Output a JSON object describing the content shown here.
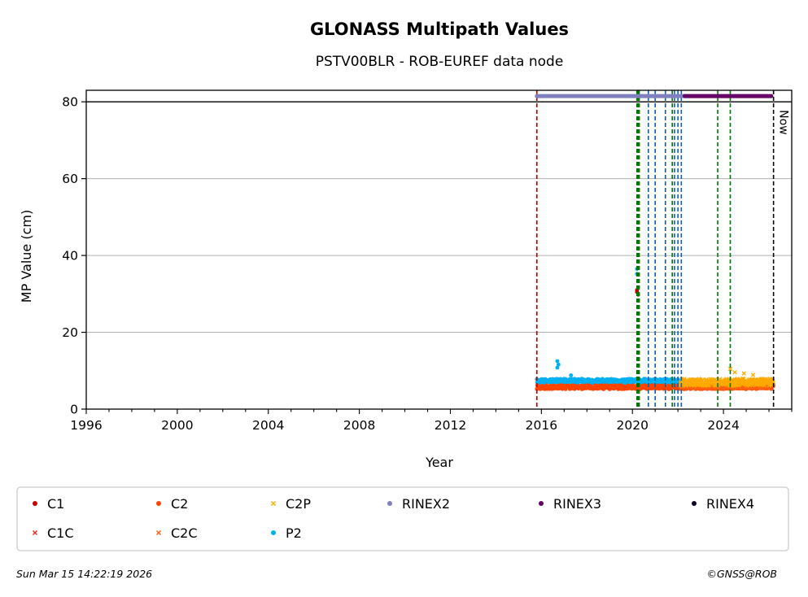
{
  "chart_data": {
    "type": "scatter",
    "title": "GLONASS Multipath Values",
    "subtitle": "PSTV00BLR - ROB-EUREF data node",
    "xlabel": "Year",
    "ylabel": "MP Value (cm)",
    "xlim": [
      1996,
      2027.0
    ],
    "ylim": [
      0,
      83
    ],
    "x_ticks": [
      1996,
      2000,
      2004,
      2008,
      2012,
      2016,
      2020,
      2024
    ],
    "y_ticks": [
      0,
      20,
      40,
      60,
      80
    ],
    "grid": "horizontal",
    "legend_position": "below",
    "reference_line_y": 80,
    "now_x": 2026.2,
    "now_label": "Now",
    "series": [
      {
        "name": "C1",
        "marker": "dot",
        "color": "#c00000",
        "x": [
          2020.2,
          2020.2,
          2020.25
        ],
        "y": [
          30.5,
          31.0,
          29.8
        ]
      },
      {
        "name": "C1C",
        "marker": "cross",
        "color": "#e03020",
        "x": [],
        "y": []
      },
      {
        "name": "C2",
        "marker": "dot",
        "color": "#ff4500",
        "range": [
          2015.8,
          2026.2
        ],
        "level": 5.7,
        "spread": 0.5
      },
      {
        "name": "C2C",
        "marker": "cross",
        "color": "#ff6010",
        "range": [
          2022.1,
          2026.2
        ],
        "level": 5.9,
        "spread": 0.5
      },
      {
        "name": "C2P",
        "marker": "cross",
        "color": "#ffaa00",
        "range": [
          2022.1,
          2026.2
        ],
        "level": 7.0,
        "spread": 0.9,
        "outliers": {
          "x": [
            2024.3,
            2024.5,
            2024.9,
            2025.3
          ],
          "y": [
            10.5,
            9.6,
            9.3,
            8.9
          ]
        }
      },
      {
        "name": "P2",
        "marker": "dot",
        "color": "#00b0f0",
        "range": [
          2015.8,
          2022.1
        ],
        "level": 7.3,
        "spread": 0.6,
        "outliers": {
          "x": [
            2016.7,
            2016.7,
            2016.75,
            2017.3,
            2020.2,
            2020.2
          ],
          "y": [
            12.5,
            10.8,
            11.6,
            8.8,
            36.5,
            35.2
          ]
        }
      },
      {
        "name": "RINEX2",
        "marker": "dot",
        "color": "#8080c0"
      },
      {
        "name": "RINEX3",
        "marker": "dot",
        "color": "#660066"
      },
      {
        "name": "RINEX4",
        "marker": "dot",
        "color": "#110022"
      }
    ],
    "rinex_bars": [
      {
        "name": "RINEX2",
        "from": 2015.8,
        "to": 2022.3,
        "y": 81.5,
        "color": "#8080c0"
      },
      {
        "name": "RINEX3",
        "from": 2022.3,
        "to": 2026.1,
        "y": 81.5,
        "color": "#660066"
      }
    ],
    "event_lines": [
      {
        "x": 2015.8,
        "color": "#007700"
      },
      {
        "x": 2015.8,
        "color": "#cc0000"
      },
      {
        "x": 2020.2,
        "color": "#007700"
      },
      {
        "x": 2020.25,
        "color": "#007700"
      },
      {
        "x": 2020.3,
        "color": "#007700"
      },
      {
        "x": 2020.7,
        "color": "#1060b0"
      },
      {
        "x": 2021.0,
        "color": "#1060b0"
      },
      {
        "x": 2021.45,
        "color": "#1060b0"
      },
      {
        "x": 2021.75,
        "color": "#007700"
      },
      {
        "x": 2021.85,
        "color": "#1060b0"
      },
      {
        "x": 2022.0,
        "color": "#1060b0"
      },
      {
        "x": 2022.15,
        "color": "#1060b0"
      },
      {
        "x": 2023.75,
        "color": "#007700"
      },
      {
        "x": 2024.3,
        "color": "#007700"
      },
      {
        "x": 2026.2,
        "color": "#000000"
      }
    ]
  },
  "footer": {
    "timestamp": "Sun Mar 15 14:22:19 2026",
    "copyright": "©GNSS@ROB"
  }
}
